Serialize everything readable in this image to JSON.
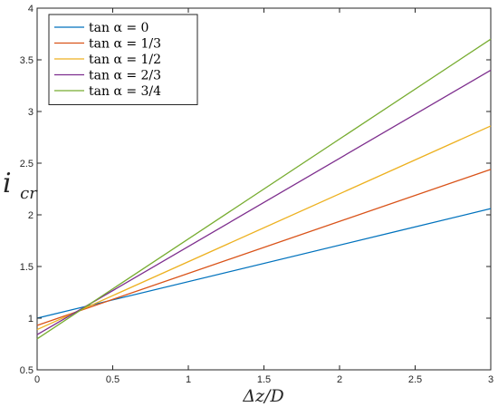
{
  "chart_data": {
    "type": "line",
    "xlabel": "Δz/D",
    "ylabel": "i_cr",
    "ylabel_main": "i",
    "ylabel_sub": "cr",
    "xlim": [
      0,
      3
    ],
    "ylim": [
      0.5,
      4
    ],
    "xticks": [
      0,
      0.5,
      1,
      1.5,
      2,
      2.5,
      3
    ],
    "xtick_labels": [
      "0",
      "0.5",
      "1",
      "1.5",
      "2",
      "2.5",
      "3"
    ],
    "yticks": [
      0.5,
      1,
      1.5,
      2,
      2.5,
      3,
      3.5,
      4
    ],
    "ytick_labels": [
      "0.5",
      "1",
      "1.5",
      "2",
      "2.5",
      "3",
      "3.5",
      "4"
    ],
    "grid": false,
    "legend_position": "top-left",
    "series": [
      {
        "name": "tan α = 0",
        "color": "#0072BD",
        "x": [
          0,
          3
        ],
        "y": [
          1.0,
          2.06
        ]
      },
      {
        "name": "tan α = 1/3",
        "color": "#D95319",
        "x": [
          0,
          3
        ],
        "y": [
          0.93,
          2.44
        ]
      },
      {
        "name": "tan α = 1/2",
        "color": "#EDB120",
        "x": [
          0,
          3
        ],
        "y": [
          0.89,
          2.86
        ]
      },
      {
        "name": "tan α = 2/3",
        "color": "#7E2F8E",
        "x": [
          0,
          3
        ],
        "y": [
          0.84,
          3.4
        ]
      },
      {
        "name": "tan α = 3/4",
        "color": "#77AC30",
        "x": [
          0,
          3
        ],
        "y": [
          0.8,
          3.7
        ]
      }
    ]
  }
}
